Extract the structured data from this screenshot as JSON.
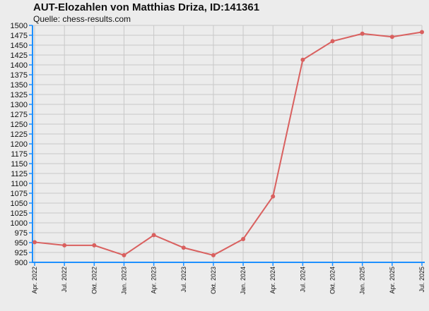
{
  "header": {
    "title": "AUT-Elozahlen von Matthias Driza, ID:141361",
    "subtitle": "Quelle: chess-results.com"
  },
  "colors": {
    "background": "#ececec",
    "grid": "#c8c8c8",
    "axis": "#1e90ff",
    "series": "#d9605f"
  },
  "chart_data": {
    "type": "line",
    "title": "AUT-Elozahlen von Matthias Driza, ID:141361",
    "subtitle": "Quelle: chess-results.com",
    "categories": [
      "Apr. 2022",
      "Jul. 2022",
      "Okt. 2022",
      "Jan. 2023",
      "Apr. 2023",
      "Jul. 2023",
      "Okt. 2023",
      "Jan. 2024",
      "Apr. 2024",
      "Jul. 2024",
      "Okt. 2024",
      "Jan. 2025",
      "Apr. 2025",
      "Jul. 2025"
    ],
    "series": [
      {
        "values": [
          951,
          943,
          943,
          918,
          969,
          937,
          918,
          959,
          1067,
          1413,
          1460,
          1479,
          1471,
          1483
        ]
      }
    ],
    "ylim": [
      900,
      1500
    ],
    "yticks": [
      900,
      925,
      950,
      975,
      1000,
      1025,
      1050,
      1075,
      1100,
      1125,
      1150,
      1175,
      1200,
      1225,
      1250,
      1275,
      1300,
      1325,
      1350,
      1375,
      1400,
      1425,
      1450,
      1475,
      1500
    ],
    "grid": true,
    "legend": "none"
  }
}
